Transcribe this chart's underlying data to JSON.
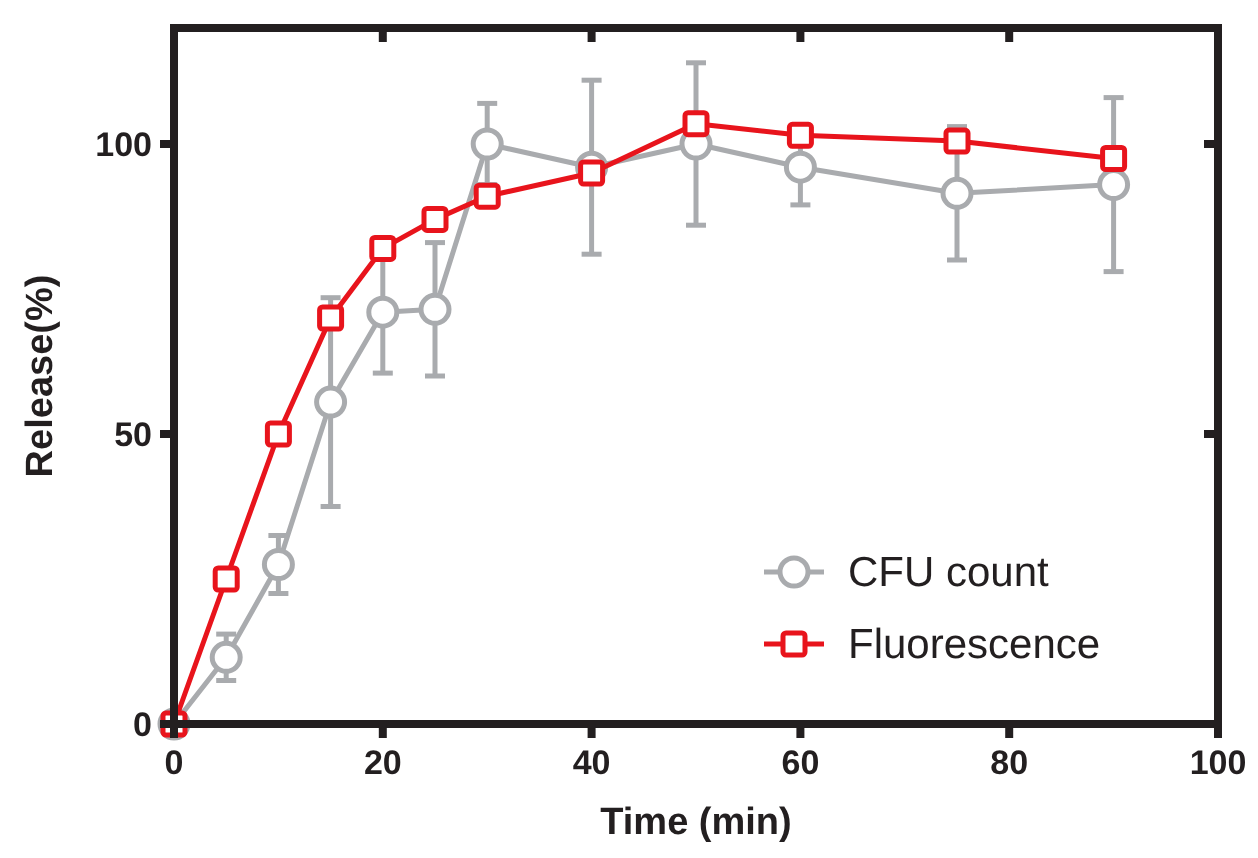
{
  "chart_data": {
    "type": "line",
    "xlabel": "Time (min)",
    "ylabel": "Release(%)",
    "xlim": [
      0,
      100
    ],
    "xticks": [
      0,
      20,
      40,
      60,
      80,
      100
    ],
    "ylim": [
      0,
      120
    ],
    "yticks": [
      0,
      50,
      100
    ],
    "grid": false,
    "legend": "bottom right",
    "line_style": "solid",
    "series": [
      {
        "name": "CFU count",
        "color": "#a9abae",
        "marker": "circle",
        "x": [
          0,
          5,
          10,
          15,
          20,
          25,
          30,
          40,
          50,
          60,
          75,
          90
        ],
        "values": [
          0,
          11.5,
          27.5,
          55.5,
          71,
          71.5,
          100,
          96,
          100,
          96,
          91.5,
          93
        ],
        "errors": [
          null,
          4,
          5,
          18,
          10.5,
          11.5,
          7,
          15,
          14,
          6.5,
          11.5,
          15
        ]
      },
      {
        "name": "Fluorescence",
        "color": "#e8141c",
        "marker": "square",
        "x": [
          0,
          5,
          10,
          15,
          20,
          25,
          30,
          40,
          50,
          60,
          75,
          90
        ],
        "values": [
          0,
          25,
          50,
          70,
          82,
          87,
          91,
          95,
          103.5,
          101.5,
          100.5,
          97.5
        ]
      }
    ]
  }
}
